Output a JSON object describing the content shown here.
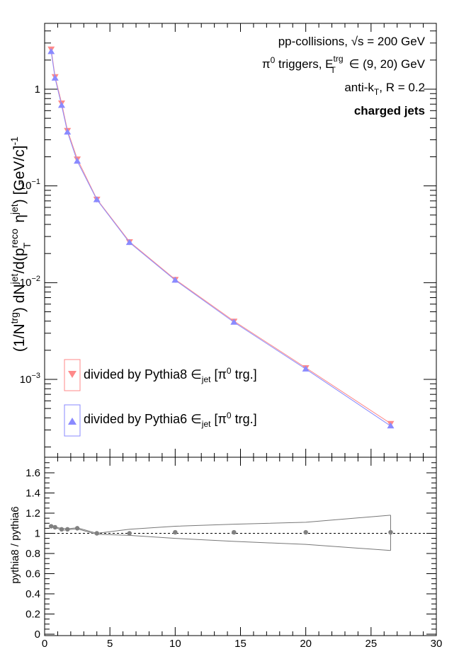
{
  "chart_data": [
    {
      "type": "line",
      "panel": "top",
      "ylabel": "(1/N^trg) dN^jet/d(p_T^reco η^jet) [GeV/c]^-1",
      "xlim": [
        0,
        30
      ],
      "ylim": [
        0.00015,
        4.5
      ],
      "log_y": true,
      "grid": false,
      "y_ticklabels": [
        "10^-3",
        "10^-2",
        "10^-1",
        "1"
      ],
      "annotations": [
        "pp-collisions, √s = 200 GeV",
        "π0 triggers, E_T^trg ∈ (9, 20) GeV",
        "anti-k_T, R = 0.2",
        "charged jets"
      ],
      "legend_placement": "bottom-left",
      "series": [
        {
          "name": "divided by Pythia8 ∈jet [π0 trg.]",
          "color": "#ff8a8a",
          "marker": "triangle-down",
          "x": [
            0.5,
            0.8,
            1.3,
            1.75,
            2.5,
            4.0,
            6.5,
            10.0,
            14.5,
            20.0,
            26.5
          ],
          "values": [
            2.6,
            1.35,
            0.72,
            0.375,
            0.19,
            0.073,
            0.0265,
            0.0108,
            0.004,
            0.00132,
            0.00035
          ]
        },
        {
          "name": "divided by Pythia6 ∈jet [π0 trg.]",
          "color": "#8a8aff",
          "marker": "triangle-up",
          "x": [
            0.5,
            0.8,
            1.3,
            1.75,
            2.5,
            4.0,
            6.5,
            10.0,
            14.5,
            20.0,
            26.5
          ],
          "values": [
            2.45,
            1.3,
            0.68,
            0.36,
            0.18,
            0.072,
            0.026,
            0.0106,
            0.0039,
            0.00128,
            0.00033
          ]
        }
      ]
    },
    {
      "type": "scatter",
      "panel": "bottom",
      "xlabel": "",
      "ylabel": "pythia8 / pythia6",
      "xlim": [
        0,
        30
      ],
      "ylim": [
        0,
        1.7
      ],
      "grid": false,
      "x_ticklabels": [
        "0",
        "5",
        "10",
        "15",
        "20",
        "25",
        "30"
      ],
      "y_ticklabels": [
        "0",
        "0.2",
        "0.4",
        "0.6",
        "0.8",
        "1",
        "1.2",
        "1.4",
        "1.6"
      ],
      "reference_line": 1.0,
      "series": [
        {
          "name": "",
          "color": "#808080",
          "x": [
            0.5,
            0.8,
            1.3,
            1.75,
            2.5,
            4.0,
            6.5,
            10.0,
            14.5,
            20.0,
            26.5
          ],
          "values": [
            1.07,
            1.06,
            1.04,
            1.04,
            1.05,
            1.0,
            1.0,
            1.01,
            1.01,
            1.01,
            1.01
          ],
          "band_upper": [
            1.07,
            1.06,
            1.05,
            1.045,
            1.055,
            1.0,
            1.04,
            1.07,
            1.09,
            1.11,
            1.18
          ],
          "band_lower": [
            1.07,
            1.06,
            1.03,
            1.035,
            1.045,
            0.99,
            0.98,
            0.95,
            0.92,
            0.89,
            0.83
          ]
        }
      ]
    }
  ]
}
